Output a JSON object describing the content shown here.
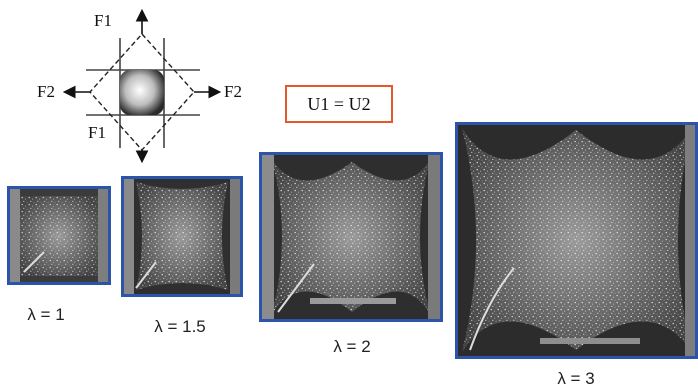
{
  "diagram": {
    "forces": {
      "f1_top": "F1",
      "f1_bottom": "F1",
      "f2_left": "F2",
      "f2_right": "F2"
    },
    "condition": "U1 = U2",
    "specimens": [
      {
        "lambda_label": "λ = 1"
      },
      {
        "lambda_label": "λ = 1.5"
      },
      {
        "lambda_label": "λ = 2"
      },
      {
        "lambda_label": "λ = 3"
      }
    ],
    "colors": {
      "photo_frame": "#2c54a8",
      "condition_box": "#e2592c",
      "photo_background": "#3a3a3a",
      "speckle": "#e6e6e6"
    }
  }
}
